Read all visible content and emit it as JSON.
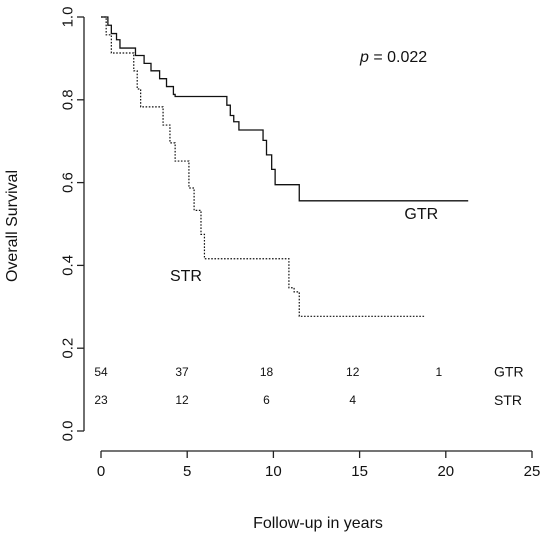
{
  "chart_data": {
    "type": "line",
    "title": "",
    "xlabel": "Follow-up in years",
    "ylabel": "Overall Survival",
    "xlim": [
      0,
      25
    ],
    "ylim": [
      0,
      1.0
    ],
    "x_ticks": [
      0,
      5,
      10,
      15,
      20,
      25
    ],
    "y_ticks": [
      "0.0",
      "0.2",
      "0.4",
      "0.6",
      "0.8",
      "1.0"
    ],
    "grid": false,
    "annotation": {
      "label": "p",
      "text": " = 0.022"
    },
    "series": [
      {
        "name": "GTR",
        "line_style": "solid",
        "color": "#111111",
        "steps": [
          [
            0,
            1.0
          ],
          [
            0.4,
            0.98
          ],
          [
            0.6,
            0.96
          ],
          [
            0.9,
            0.945
          ],
          [
            1.1,
            0.925
          ],
          [
            2.0,
            0.907
          ],
          [
            2.5,
            0.888
          ],
          [
            2.9,
            0.87
          ],
          [
            3.4,
            0.851
          ],
          [
            3.8,
            0.832
          ],
          [
            4.2,
            0.813
          ],
          [
            4.3,
            0.808
          ],
          [
            7.3,
            0.787
          ],
          [
            7.5,
            0.762
          ],
          [
            7.7,
            0.747
          ],
          [
            8.0,
            0.727
          ],
          [
            9.4,
            0.702
          ],
          [
            9.6,
            0.667
          ],
          [
            9.9,
            0.632
          ],
          [
            10.1,
            0.595
          ],
          [
            11.5,
            0.556
          ],
          [
            21.3,
            0.556
          ]
        ]
      },
      {
        "name": "STR",
        "line_style": "dotted",
        "color": "#111111",
        "steps": [
          [
            0,
            1.0
          ],
          [
            0.3,
            0.957
          ],
          [
            0.6,
            0.913
          ],
          [
            1.9,
            0.87
          ],
          [
            2.1,
            0.826
          ],
          [
            2.3,
            0.783
          ],
          [
            3.6,
            0.739
          ],
          [
            4.0,
            0.696
          ],
          [
            4.3,
            0.652
          ],
          [
            5.1,
            0.587
          ],
          [
            5.4,
            0.533
          ],
          [
            5.8,
            0.475
          ],
          [
            6.0,
            0.416
          ],
          [
            10.9,
            0.346
          ],
          [
            11.2,
            0.336
          ],
          [
            11.5,
            0.277
          ],
          [
            18.8,
            0.277
          ]
        ]
      }
    ],
    "curve_labels": [
      {
        "series": "GTR",
        "text": "GTR",
        "x": 17.6,
        "y": 0.512
      },
      {
        "series": "STR",
        "text": "STR",
        "x": 4.0,
        "y": 0.362
      }
    ],
    "risk_table": {
      "rows": [
        {
          "name": "GTR",
          "y": 0.143,
          "counts": [
            {
              "x": 0,
              "n": "54"
            },
            {
              "x": 4.7,
              "n": "37"
            },
            {
              "x": 9.6,
              "n": "18"
            },
            {
              "x": 14.6,
              "n": "12"
            },
            {
              "x": 19.6,
              "n": "1"
            }
          ]
        },
        {
          "name": "STR",
          "y": 0.075,
          "counts": [
            {
              "x": 0,
              "n": "23"
            },
            {
              "x": 4.7,
              "n": "12"
            },
            {
              "x": 9.6,
              "n": "6"
            },
            {
              "x": 14.6,
              "n": "4"
            }
          ]
        }
      ]
    }
  }
}
